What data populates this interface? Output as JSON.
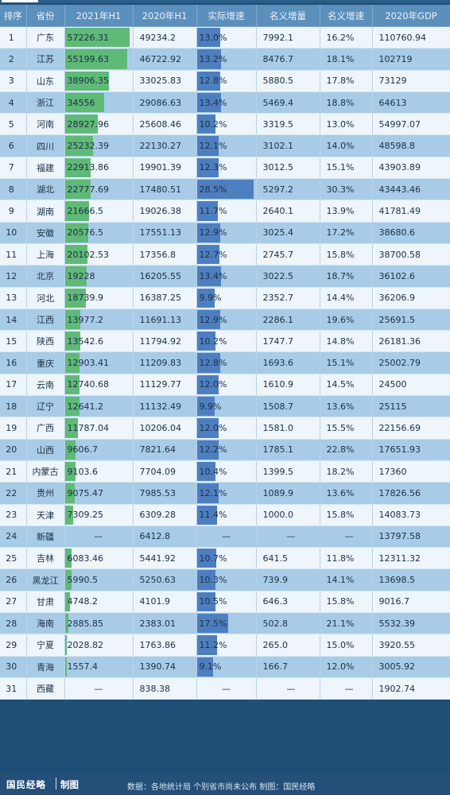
{
  "headers": [
    "排序",
    "省份",
    "2021年H1",
    "2020年H1",
    "实际增速",
    "名义增量",
    "名义增速",
    "2020年GDP"
  ],
  "colors": {
    "gdp_bar": "#5fb977",
    "growth_bar": "#4d7fbf",
    "header_bg": "#5b8fbc",
    "row_light": "#eef5fb",
    "row_dark": "#a8cce7"
  },
  "chart_data": {
    "type": "table",
    "columns": [
      "排序",
      "省份",
      "2021年H1",
      "2020年H1",
      "实际增速",
      "名义增量",
      "名义增速",
      "2020年GDP"
    ],
    "bar_columns": {
      "2021年H1": "green",
      "实际增速": "blue"
    },
    "rows": [
      {
        "rank": "1",
        "prov": "广东",
        "h1_2021": "57226.31",
        "h1_2020": "49234.2",
        "real": "13.0%",
        "inc": "7992.1",
        "nom": "16.2%",
        "gdp": "110760.94"
      },
      {
        "rank": "2",
        "prov": "江苏",
        "h1_2021": "55199.63",
        "h1_2020": "46722.92",
        "real": "13.2%",
        "inc": "8476.7",
        "nom": "18.1%",
        "gdp": "102719"
      },
      {
        "rank": "3",
        "prov": "山东",
        "h1_2021": "38906.35",
        "h1_2020": "33025.83",
        "real": "12.8%",
        "inc": "5880.5",
        "nom": "17.8%",
        "gdp": "73129"
      },
      {
        "rank": "4",
        "prov": "浙江",
        "h1_2021": "34556",
        "h1_2020": "29086.63",
        "real": "13.4%",
        "inc": "5469.4",
        "nom": "18.8%",
        "gdp": "64613"
      },
      {
        "rank": "5",
        "prov": "河南",
        "h1_2021": "28927.96",
        "h1_2020": "25608.46",
        "real": "10.2%",
        "inc": "3319.5",
        "nom": "13.0%",
        "gdp": "54997.07"
      },
      {
        "rank": "6",
        "prov": "四川",
        "h1_2021": "25232.39",
        "h1_2020": "22130.27",
        "real": "12.1%",
        "inc": "3102.1",
        "nom": "14.0%",
        "gdp": "48598.8"
      },
      {
        "rank": "7",
        "prov": "福建",
        "h1_2021": "22913.86",
        "h1_2020": "19901.39",
        "real": "12.3%",
        "inc": "3012.5",
        "nom": "15.1%",
        "gdp": "43903.89"
      },
      {
        "rank": "8",
        "prov": "湖北",
        "h1_2021": "22777.69",
        "h1_2020": "17480.51",
        "real": "28.5%",
        "inc": "5297.2",
        "nom": "30.3%",
        "gdp": "43443.46"
      },
      {
        "rank": "9",
        "prov": "湖南",
        "h1_2021": "21666.5",
        "h1_2020": "19026.38",
        "real": "11.7%",
        "inc": "2640.1",
        "nom": "13.9%",
        "gdp": "41781.49"
      },
      {
        "rank": "10",
        "prov": "安徽",
        "h1_2021": "20576.5",
        "h1_2020": "17551.13",
        "real": "12.9%",
        "inc": "3025.4",
        "nom": "17.2%",
        "gdp": "38680.6"
      },
      {
        "rank": "11",
        "prov": "上海",
        "h1_2021": "20102.53",
        "h1_2020": "17356.8",
        "real": "12.7%",
        "inc": "2745.7",
        "nom": "15.8%",
        "gdp": "38700.58"
      },
      {
        "rank": "12",
        "prov": "北京",
        "h1_2021": "19228",
        "h1_2020": "16205.55",
        "real": "13.4%",
        "inc": "3022.5",
        "nom": "18.7%",
        "gdp": "36102.6"
      },
      {
        "rank": "13",
        "prov": "河北",
        "h1_2021": "18739.9",
        "h1_2020": "16387.25",
        "real": "9.9%",
        "inc": "2352.7",
        "nom": "14.4%",
        "gdp": "36206.9"
      },
      {
        "rank": "14",
        "prov": "江西",
        "h1_2021": "13977.2",
        "h1_2020": "11691.13",
        "real": "12.9%",
        "inc": "2286.1",
        "nom": "19.6%",
        "gdp": "25691.5"
      },
      {
        "rank": "15",
        "prov": "陕西",
        "h1_2021": "13542.6",
        "h1_2020": "11794.92",
        "real": "10.2%",
        "inc": "1747.7",
        "nom": "14.8%",
        "gdp": "26181.36"
      },
      {
        "rank": "16",
        "prov": "重庆",
        "h1_2021": "12903.41",
        "h1_2020": "11209.83",
        "real": "12.8%",
        "inc": "1693.6",
        "nom": "15.1%",
        "gdp": "25002.79"
      },
      {
        "rank": "17",
        "prov": "云南",
        "h1_2021": "12740.68",
        "h1_2020": "11129.77",
        "real": "12.0%",
        "inc": "1610.9",
        "nom": "14.5%",
        "gdp": "24500"
      },
      {
        "rank": "18",
        "prov": "辽宁",
        "h1_2021": "12641.2",
        "h1_2020": "11132.49",
        "real": "9.9%",
        "inc": "1508.7",
        "nom": "13.6%",
        "gdp": "25115"
      },
      {
        "rank": "19",
        "prov": "广西",
        "h1_2021": "11787.04",
        "h1_2020": "10206.04",
        "real": "12.0%",
        "inc": "1581.0",
        "nom": "15.5%",
        "gdp": "22156.69"
      },
      {
        "rank": "20",
        "prov": "山西",
        "h1_2021": "9606.7",
        "h1_2020": "7821.64",
        "real": "12.2%",
        "inc": "1785.1",
        "nom": "22.8%",
        "gdp": "17651.93"
      },
      {
        "rank": "21",
        "prov": "内蒙古",
        "h1_2021": "9103.6",
        "h1_2020": "7704.09",
        "real": "10.4%",
        "inc": "1399.5",
        "nom": "18.2%",
        "gdp": "17360"
      },
      {
        "rank": "22",
        "prov": "贵州",
        "h1_2021": "9075.47",
        "h1_2020": "7985.53",
        "real": "12.1%",
        "inc": "1089.9",
        "nom": "13.6%",
        "gdp": "17826.56"
      },
      {
        "rank": "23",
        "prov": "天津",
        "h1_2021": "7309.25",
        "h1_2020": "6309.28",
        "real": "11.4%",
        "inc": "1000.0",
        "nom": "15.8%",
        "gdp": "14083.73"
      },
      {
        "rank": "24",
        "prov": "新疆",
        "h1_2021": "—",
        "h1_2020": "6412.8",
        "real": "—",
        "inc": "—",
        "nom": "—",
        "gdp": "13797.58"
      },
      {
        "rank": "25",
        "prov": "吉林",
        "h1_2021": "6083.46",
        "h1_2020": "5441.92",
        "real": "10.7%",
        "inc": "641.5",
        "nom": "11.8%",
        "gdp": "12311.32"
      },
      {
        "rank": "26",
        "prov": "黑龙江",
        "h1_2021": "5990.5",
        "h1_2020": "5250.63",
        "real": "10.3%",
        "inc": "739.9",
        "nom": "14.1%",
        "gdp": "13698.5"
      },
      {
        "rank": "27",
        "prov": "甘肃",
        "h1_2021": "4748.2",
        "h1_2020": "4101.9",
        "real": "10.5%",
        "inc": "646.3",
        "nom": "15.8%",
        "gdp": "9016.7"
      },
      {
        "rank": "28",
        "prov": "海南",
        "h1_2021": "2885.85",
        "h1_2020": "2383.01",
        "real": "17.5%",
        "inc": "502.8",
        "nom": "21.1%",
        "gdp": "5532.39"
      },
      {
        "rank": "29",
        "prov": "宁夏",
        "h1_2021": "2028.82",
        "h1_2020": "1763.86",
        "real": "11.2%",
        "inc": "265.0",
        "nom": "15.0%",
        "gdp": "3920.55"
      },
      {
        "rank": "30",
        "prov": "青海",
        "h1_2021": "1557.4",
        "h1_2020": "1390.74",
        "real": "9.1%",
        "inc": "166.7",
        "nom": "12.0%",
        "gdp": "3005.92"
      },
      {
        "rank": "31",
        "prov": "西藏",
        "h1_2021": "—",
        "h1_2020": "838.38",
        "real": "—",
        "inc": "—",
        "nom": "—",
        "gdp": "1902.74"
      }
    ]
  },
  "footer": {
    "brand": "国民经略",
    "made": "制图",
    "source": "数据：各地统计局 个别省市尚未公布 制图：国民经略"
  }
}
